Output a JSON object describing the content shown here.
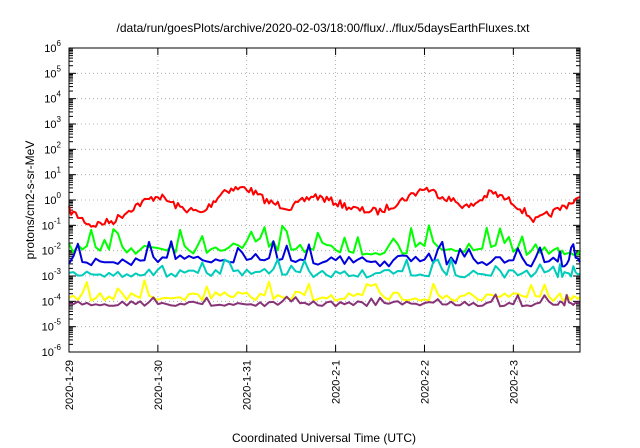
{
  "chart_data": {
    "type": "line",
    "title": "/data/run/goesPlots/archive/2020-02-03/18:00/flux/../flux/5daysEarthFluxes.txt",
    "xlabel": "Coordinated Universal Time (UTC)",
    "ylabel": "protons/cm2-s-sr-MeV",
    "y_scale": "log",
    "ylim": [
      1e-06,
      1000000.0
    ],
    "xlim": [
      "2020-01-29T00:00",
      "2020-02-03T18:00"
    ],
    "grid": true,
    "legend": "none",
    "x_ticks": [
      "2020-1-29",
      "2020-1-30",
      "2020-1-31",
      "2020-2-1",
      "2020-2-2",
      "2020-2-3"
    ],
    "y_ticks": [
      {
        "base": "10",
        "exp": "6"
      },
      {
        "base": "10",
        "exp": "5"
      },
      {
        "base": "10",
        "exp": "4"
      },
      {
        "base": "10",
        "exp": "3"
      },
      {
        "base": "10",
        "exp": "2"
      },
      {
        "base": "10",
        "exp": "1"
      },
      {
        "base": "10",
        "exp": "0"
      },
      {
        "base": "10",
        "exp": "-1"
      },
      {
        "base": "10",
        "exp": "-2"
      },
      {
        "base": "10",
        "exp": "-3"
      },
      {
        "base": "10",
        "exp": "-4"
      },
      {
        "base": "10",
        "exp": "-5"
      },
      {
        "base": "10",
        "exp": "-6"
      }
    ],
    "series": [
      {
        "color": "#ff0000",
        "x": [
          "2020-01-29T00:00",
          "2020-01-29T06:00",
          "2020-01-29T12:00",
          "2020-01-29T18:00",
          "2020-01-30T00:00",
          "2020-01-30T06:00",
          "2020-01-30T12:00",
          "2020-01-30T18:00",
          "2020-01-31T00:00",
          "2020-01-31T06:00",
          "2020-01-31T12:00",
          "2020-01-31T18:00",
          "2020-02-01T00:00",
          "2020-02-01T06:00",
          "2020-02-01T12:00",
          "2020-02-01T18:00",
          "2020-02-02T00:00",
          "2020-02-02T06:00",
          "2020-02-02T12:00",
          "2020-02-02T18:00",
          "2020-02-03T00:00",
          "2020-02-03T06:00",
          "2020-02-03T12:00",
          "2020-02-03T18:00"
        ],
        "values": [
          0.4,
          0.1,
          0.15,
          0.6,
          1.5,
          0.5,
          0.3,
          2.5,
          3,
          0.8,
          0.5,
          1.5,
          0.8,
          0.4,
          0.35,
          1,
          3,
          1.2,
          0.5,
          2,
          0.8,
          0.15,
          0.4,
          1.3
        ]
      },
      {
        "color": "#00ff00",
        "x": [
          "2020-01-29T00:00",
          "2020-01-29T12:00",
          "2020-01-30T00:00",
          "2020-01-30T12:00",
          "2020-01-31T00:00",
          "2020-01-31T12:00",
          "2020-02-01T00:00",
          "2020-02-01T12:00",
          "2020-02-02T00:00",
          "2020-02-02T12:00",
          "2020-02-03T00:00",
          "2020-02-03T12:00",
          "2020-02-03T18:00"
        ],
        "values": [
          0.012,
          0.01,
          0.015,
          0.012,
          0.02,
          0.015,
          0.012,
          0.01,
          0.015,
          0.012,
          0.012,
          0.01,
          0.01
        ]
      },
      {
        "color": "#0000dd",
        "x": [
          "2020-01-29T00:00",
          "2020-01-29T12:00",
          "2020-01-30T00:00",
          "2020-01-30T12:00",
          "2020-01-31T00:00",
          "2020-01-31T12:00",
          "2020-02-01T00:00",
          "2020-02-01T12:00",
          "2020-02-02T00:00",
          "2020-02-02T12:00",
          "2020-02-03T00:00",
          "2020-02-03T12:00",
          "2020-02-03T18:00"
        ],
        "values": [
          0.004,
          0.0035,
          0.005,
          0.004,
          0.006,
          0.005,
          0.004,
          0.0035,
          0.005,
          0.004,
          0.004,
          0.0035,
          0.0035
        ]
      },
      {
        "color": "#00ccbb",
        "x": [
          "2020-01-29T00:00",
          "2020-01-29T12:00",
          "2020-01-30T00:00",
          "2020-01-30T12:00",
          "2020-01-31T00:00",
          "2020-01-31T12:00",
          "2020-02-01T00:00",
          "2020-02-01T12:00",
          "2020-02-02T00:00",
          "2020-02-02T12:00",
          "2020-02-03T00:00",
          "2020-02-03T12:00",
          "2020-02-03T18:00"
        ],
        "values": [
          0.0012,
          0.0012,
          0.0013,
          0.0012,
          0.0014,
          0.0013,
          0.0012,
          0.0012,
          0.0013,
          0.0012,
          0.0012,
          0.0012,
          0.0012
        ]
      },
      {
        "color": "#ffff00",
        "x": [
          "2020-01-29T00:00",
          "2020-01-29T12:00",
          "2020-01-30T00:00",
          "2020-01-30T12:00",
          "2020-01-31T00:00",
          "2020-01-31T12:00",
          "2020-02-01T00:00",
          "2020-02-01T12:00",
          "2020-02-02T00:00",
          "2020-02-02T12:00",
          "2020-02-03T00:00",
          "2020-02-03T12:00",
          "2020-02-03T18:00"
        ],
        "values": [
          0.00015,
          0.00015,
          0.00016,
          0.00015,
          0.00016,
          0.00016,
          0.00015,
          0.00015,
          0.00016,
          0.00015,
          0.00015,
          0.00015,
          0.00015
        ]
      },
      {
        "color": "#883377",
        "x": [
          "2020-01-29T00:00",
          "2020-01-29T12:00",
          "2020-01-30T00:00",
          "2020-01-30T12:00",
          "2020-01-31T00:00",
          "2020-01-31T12:00",
          "2020-02-01T00:00",
          "2020-02-01T12:00",
          "2020-02-02T00:00",
          "2020-02-02T12:00",
          "2020-02-03T00:00",
          "2020-02-03T12:00",
          "2020-02-03T18:00"
        ],
        "values": [
          8e-05,
          8e-05,
          8e-05,
          8e-05,
          8e-05,
          8e-05,
          8e-05,
          8e-05,
          8e-05,
          8e-05,
          8e-05,
          8e-05,
          8e-05
        ]
      }
    ]
  }
}
